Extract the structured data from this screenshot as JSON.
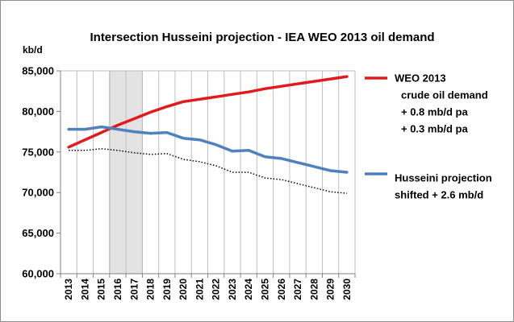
{
  "chart_data": {
    "type": "line",
    "title": "Intersection Husseini  projection - IEA WEO 2013 oil demand",
    "ylabel": "kb/d",
    "xlabel": "",
    "ylim": [
      60000,
      85000
    ],
    "yticks": [
      "60,000",
      "65,000",
      "70,000",
      "75,000",
      "80,000",
      "85,000"
    ],
    "ytick_values": [
      60000,
      65000,
      70000,
      75000,
      80000,
      85000
    ],
    "x": [
      "2013",
      "2014",
      "2015",
      "2016",
      "2017",
      "2018",
      "2019",
      "2020",
      "2021",
      "2022",
      "2023",
      "2024",
      "2025",
      "2026",
      "2027",
      "2028",
      "2029",
      "2030"
    ],
    "grid": "vertical",
    "highlight_band": [
      "2016",
      "2017"
    ],
    "series": [
      {
        "name_lines": [
          "WEO 2013",
          "crude oil demand",
          "+ 0.8 mb/d pa",
          "+ 0.3 mb/d pa"
        ],
        "color": "#e31a1c",
        "style": "solid",
        "values": [
          75600,
          76500,
          77400,
          78300,
          79100,
          79900,
          80600,
          81200,
          81500,
          81800,
          82100,
          82400,
          82800,
          83100,
          83400,
          83700,
          84000,
          84300
        ]
      },
      {
        "name_lines": [
          "Husseini projection",
          "shifted + 2.6 mb/d"
        ],
        "color": "#4f81bd",
        "style": "solid",
        "values": [
          77800,
          77800,
          78100,
          77800,
          77500,
          77300,
          77400,
          76700,
          76500,
          75900,
          75100,
          75200,
          74400,
          74200,
          73700,
          73200,
          72700,
          72500
        ]
      },
      {
        "color": "#000000",
        "style": "dotted",
        "values": [
          75200,
          75200,
          75400,
          75200,
          74900,
          74700,
          74800,
          74100,
          73800,
          73300,
          72500,
          72500,
          71800,
          71600,
          71100,
          70600,
          70100,
          69900
        ]
      }
    ]
  }
}
